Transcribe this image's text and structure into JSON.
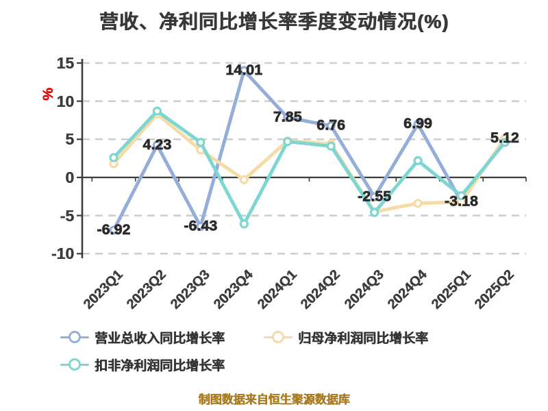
{
  "title": "营收、净利同比增长率季度变动情况(%)",
  "y_axis_unit": "%",
  "y_axis_unit_color": "#e60000",
  "footer": "制图数据来自恒生聚源数据库",
  "footer_color": "#ab7d22",
  "chart_data": {
    "type": "line",
    "title": "营收、净利同比增长率季度变动情况(%)",
    "categories": [
      "2023Q1",
      "2023Q2",
      "2023Q3",
      "2023Q4",
      "2024Q1",
      "2024Q2",
      "2024Q3",
      "2024Q4",
      "2025Q1",
      "2025Q2"
    ],
    "series": [
      {
        "name": "营业总收入同比增长率",
        "color": "#94aed9",
        "values": [
          -6.92,
          4.23,
          -6.43,
          14.01,
          7.85,
          6.76,
          -2.55,
          6.99,
          -3.18,
          5.12
        ],
        "labels": [
          "-6.92",
          "4.23",
          "-6.43",
          "14.01",
          "7.85",
          "6.76",
          "-2.55",
          "6.99",
          "-3.18",
          "5.12"
        ]
      },
      {
        "name": "归母净利润同比增长率",
        "color": "#f5dca6",
        "values": [
          1.8,
          8.3,
          3.6,
          -0.3,
          4.8,
          4.4,
          -4.5,
          -3.4,
          -3.2,
          5.1
        ],
        "labels": []
      },
      {
        "name": "扣非净利润同比增长率",
        "color": "#7ed6d2",
        "values": [
          2.6,
          8.7,
          4.6,
          -6.1,
          4.7,
          4.1,
          -4.6,
          2.2,
          -2.4,
          4.6
        ],
        "labels": []
      }
    ],
    "ylim": [
      -10,
      15
    ],
    "y_ticks": [
      15,
      10,
      5,
      0,
      -5,
      -10
    ],
    "grid": "horizontal dashed",
    "zero_axis_line": true,
    "legend_position": "bottom-left",
    "label_color": "#2b2b2b",
    "grid_color": "#cfcfcf",
    "axis_color": "#3c3c3c"
  }
}
